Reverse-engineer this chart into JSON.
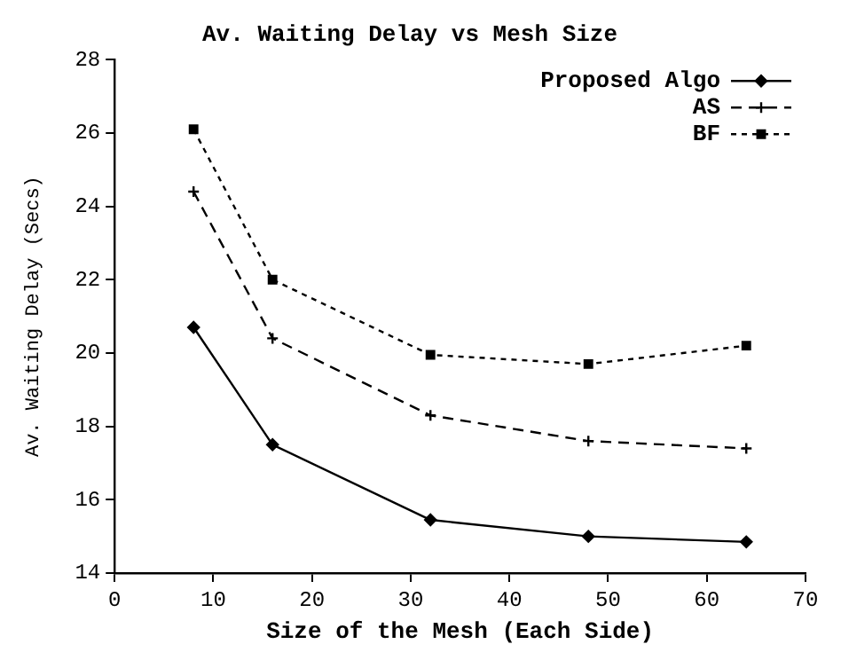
{
  "chart_data": {
    "type": "line",
    "title": "Av. Waiting Delay vs Mesh Size",
    "xlabel": "Size of the Mesh (Each Side)",
    "ylabel": "Av. Waiting Delay (Secs)",
    "x": [
      8,
      16,
      32,
      48,
      64
    ],
    "series": [
      {
        "name": "Proposed Algo",
        "color": "#000000",
        "marker": "diamond",
        "line_style": "solid",
        "values": [
          20.7,
          17.5,
          15.45,
          15.0,
          14.85
        ]
      },
      {
        "name": "AS",
        "color": "#000000",
        "marker": "cross",
        "line_style": "dashed",
        "values": [
          24.4,
          20.4,
          18.3,
          17.6,
          17.4
        ]
      },
      {
        "name": "BF",
        "color": "#000000",
        "marker": "square",
        "line_style": "dotted",
        "values": [
          26.1,
          22.0,
          19.95,
          19.7,
          20.2
        ]
      }
    ],
    "xlim": [
      0,
      70
    ],
    "xticks": [
      0,
      10,
      20,
      30,
      40,
      50,
      60,
      70
    ],
    "ylim": [
      14,
      28
    ],
    "yticks": [
      14,
      16,
      18,
      20,
      22,
      24,
      26,
      28
    ],
    "grid": false,
    "legend": "top right"
  }
}
